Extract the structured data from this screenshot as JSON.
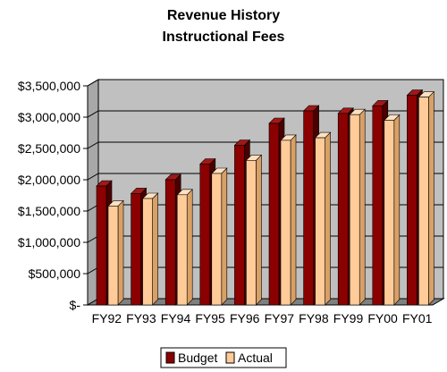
{
  "chart_data": {
    "type": "bar",
    "title": "Revenue History",
    "subtitle": "Instructional Fees",
    "categories": [
      "FY92",
      "FY93",
      "FY94",
      "FY95",
      "FY96",
      "FY97",
      "FY98",
      "FY99",
      "FY00",
      "FY01"
    ],
    "series": [
      {
        "name": "Budget",
        "values": [
          1900000,
          1780000,
          2000000,
          2250000,
          2550000,
          2900000,
          3100000,
          3060000,
          3180000,
          3350000
        ]
      },
      {
        "name": "Actual",
        "values": [
          1580000,
          1700000,
          1760000,
          2100000,
          2310000,
          2630000,
          2670000,
          3040000,
          2950000,
          3320000
        ]
      }
    ],
    "ylim": [
      0,
      3500000
    ],
    "ytick_labels": [
      "$-",
      "$500,000",
      "$1,000,000",
      "$1,500,000",
      "$2,000,000",
      "$2,500,000",
      "$3,000,000",
      "$3,500,000"
    ],
    "grid": true,
    "legend_position": "bottom-center",
    "colors": {
      "budget_front": "#8b0000",
      "budget_side": "#4a0000",
      "budget_top": "#a01818",
      "actual_front": "#ffcc99",
      "actual_side": "#d9a066",
      "actual_top": "#ffe0bf",
      "plot_back": "#c0c0c0",
      "floor": "#808080"
    }
  }
}
